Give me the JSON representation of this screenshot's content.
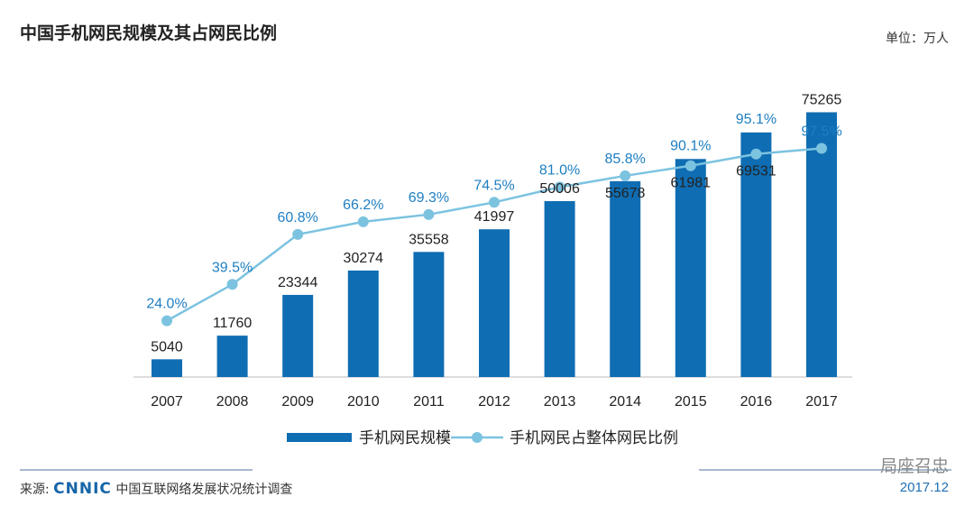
{
  "chart_data": {
    "type": "bar+line",
    "title": "中国手机网民规模及其占网民比例",
    "unit_label": "单位：万人",
    "categories": [
      "2007",
      "2008",
      "2009",
      "2010",
      "2011",
      "2012",
      "2013",
      "2014",
      "2015",
      "2016",
      "2017"
    ],
    "series": [
      {
        "name": "手机网民规模",
        "type": "bar",
        "color": "#0f6db3",
        "values": [
          5040,
          11760,
          23344,
          30274,
          35558,
          41997,
          50006,
          55678,
          61981,
          69531,
          75265
        ]
      },
      {
        "name": "手机网民占整体网民比例",
        "type": "line",
        "color": "#7cc3e0",
        "unit": "%",
        "values": [
          24.0,
          39.5,
          60.8,
          66.2,
          69.3,
          74.5,
          81.0,
          85.8,
          90.1,
          95.1,
          97.5
        ]
      }
    ],
    "bar_ylim": [
      0,
      80000
    ],
    "line_ylim": [
      0,
      120
    ],
    "grid": false,
    "legend": "bottom"
  },
  "footer": {
    "source_prefix": "来源:",
    "source_logo": "CNNIC",
    "source_text": "中国互联网络发展状况统计调查",
    "date": "2017.12",
    "watermark": "局座召忠"
  }
}
